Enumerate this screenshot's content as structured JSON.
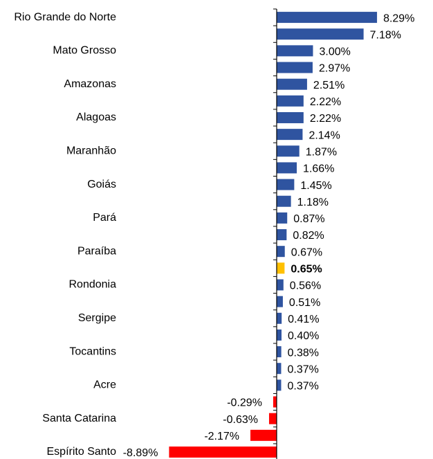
{
  "chart_data": {
    "type": "hbar",
    "categories": [
      "Rio Grande do Norte",
      null,
      "Mato Grosso",
      null,
      "Amazonas",
      null,
      "Alagoas",
      null,
      "Maranhão",
      null,
      "Goiás",
      null,
      "Pará",
      null,
      "Paraíba",
      null,
      "Rondonia",
      null,
      "Sergipe",
      null,
      "Tocantins",
      null,
      "Acre",
      null,
      "Santa Catarina",
      null,
      "Espírito Santo"
    ],
    "values": [
      8.29,
      7.18,
      3.0,
      2.97,
      2.51,
      2.22,
      2.22,
      2.14,
      1.87,
      1.66,
      1.45,
      1.18,
      0.87,
      0.82,
      0.67,
      0.65,
      0.56,
      0.51,
      0.41,
      0.4,
      0.38,
      0.37,
      0.37,
      -0.29,
      -0.63,
      -2.17,
      -8.89
    ],
    "value_labels": [
      "8.29%",
      "7.18%",
      "3.00%",
      "2.97%",
      "2.51%",
      "2.22%",
      "2.22%",
      "2.14%",
      "1.87%",
      "1.66%",
      "1.45%",
      "1.18%",
      "0.87%",
      "0.82%",
      "0.67%",
      "0.65%",
      "0.56%",
      "0.51%",
      "0.41%",
      "0.40%",
      "0.38%",
      "0.37%",
      "0.37%",
      "-0.29%",
      "-0.63%",
      "-2.17%",
      "-8.89%"
    ],
    "colors": [
      "#2f54a0",
      "#2f54a0",
      "#2f54a0",
      "#2f54a0",
      "#2f54a0",
      "#2f54a0",
      "#2f54a0",
      "#2f54a0",
      "#2f54a0",
      "#2f54a0",
      "#2f54a0",
      "#2f54a0",
      "#2f54a0",
      "#2f54a0",
      "#2f54a0",
      "#ffc000",
      "#2f54a0",
      "#2f54a0",
      "#2f54a0",
      "#2f54a0",
      "#2f54a0",
      "#2f54a0",
      "#2f54a0",
      "#ff0000",
      "#ff0000",
      "#ff0000",
      "#ff0000"
    ],
    "bold": [
      false,
      false,
      false,
      false,
      false,
      false,
      false,
      false,
      false,
      false,
      false,
      false,
      false,
      false,
      false,
      true,
      false,
      false,
      false,
      false,
      false,
      false,
      false,
      false,
      false,
      false,
      false
    ]
  }
}
